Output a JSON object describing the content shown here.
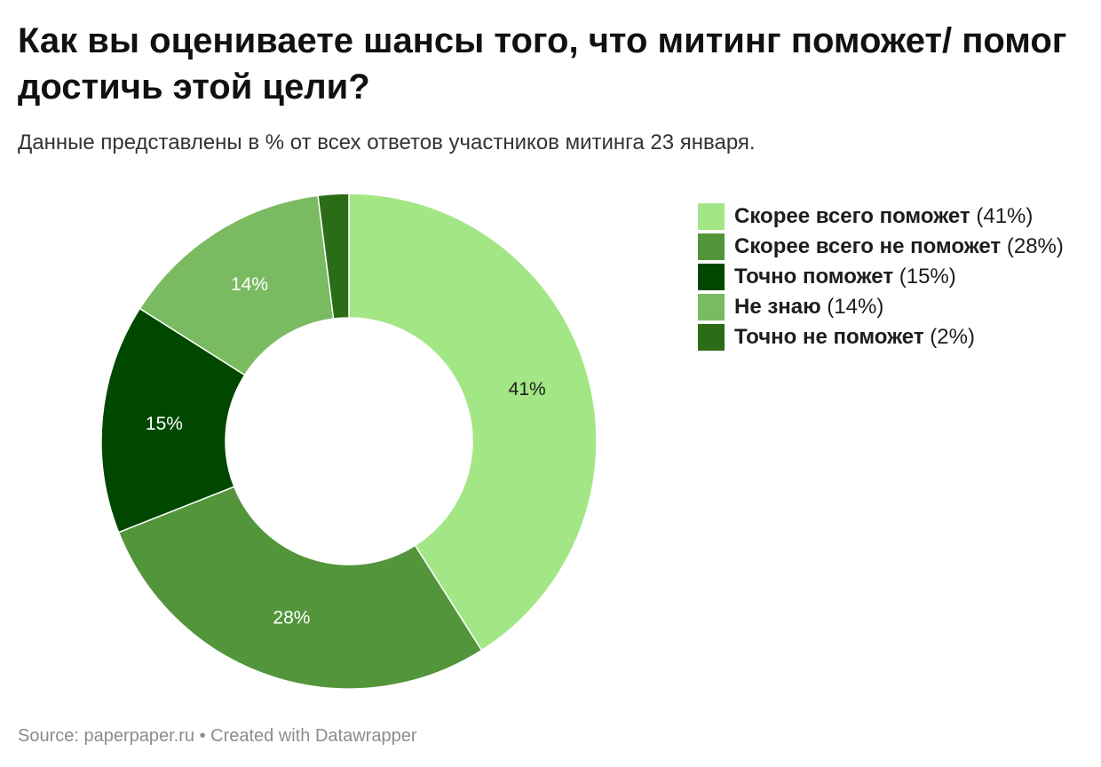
{
  "header": {
    "title": "Как вы оцениваете шансы того, что митинг поможет/ помог достичь этой цели?",
    "subtitle": "Данные представлены в % от всех ответов участников митинга 23 января."
  },
  "chart_data": {
    "type": "pie",
    "variant": "donut",
    "title": "Как вы оцениваете шансы того, что митинг поможет/ помог достичь этой цели?",
    "subtitle": "Данные представлены в % от всех ответов участников митинга 23 января.",
    "unit": "%",
    "legend_position": "right",
    "slices": [
      {
        "label": "Скорее всего поможет",
        "value": 41,
        "display": "41%",
        "legend_value": "(41%)",
        "color": "#a3e685",
        "text_color": "#1d1d1d"
      },
      {
        "label": "Скорее всего не поможет",
        "value": 28,
        "display": "28%",
        "legend_value": "(28%)",
        "color": "#53953a",
        "text_color": "#ffffff"
      },
      {
        "label": "Точно поможет",
        "value": 15,
        "display": "15%",
        "legend_value": "(15%)",
        "color": "#004800",
        "text_color": "#ffffff"
      },
      {
        "label": "Не знаю",
        "value": 14,
        "display": "14%",
        "legend_value": "(14%)",
        "color": "#7aba61",
        "text_color": "#ffffff"
      },
      {
        "label": "Точно не поможет",
        "value": 2,
        "display": "",
        "legend_value": "(2%)",
        "color": "#2b6c17",
        "text_color": "#ffffff"
      }
    ]
  },
  "footer": {
    "source": "Source: paperpaper.ru • Created with Datawrapper"
  }
}
